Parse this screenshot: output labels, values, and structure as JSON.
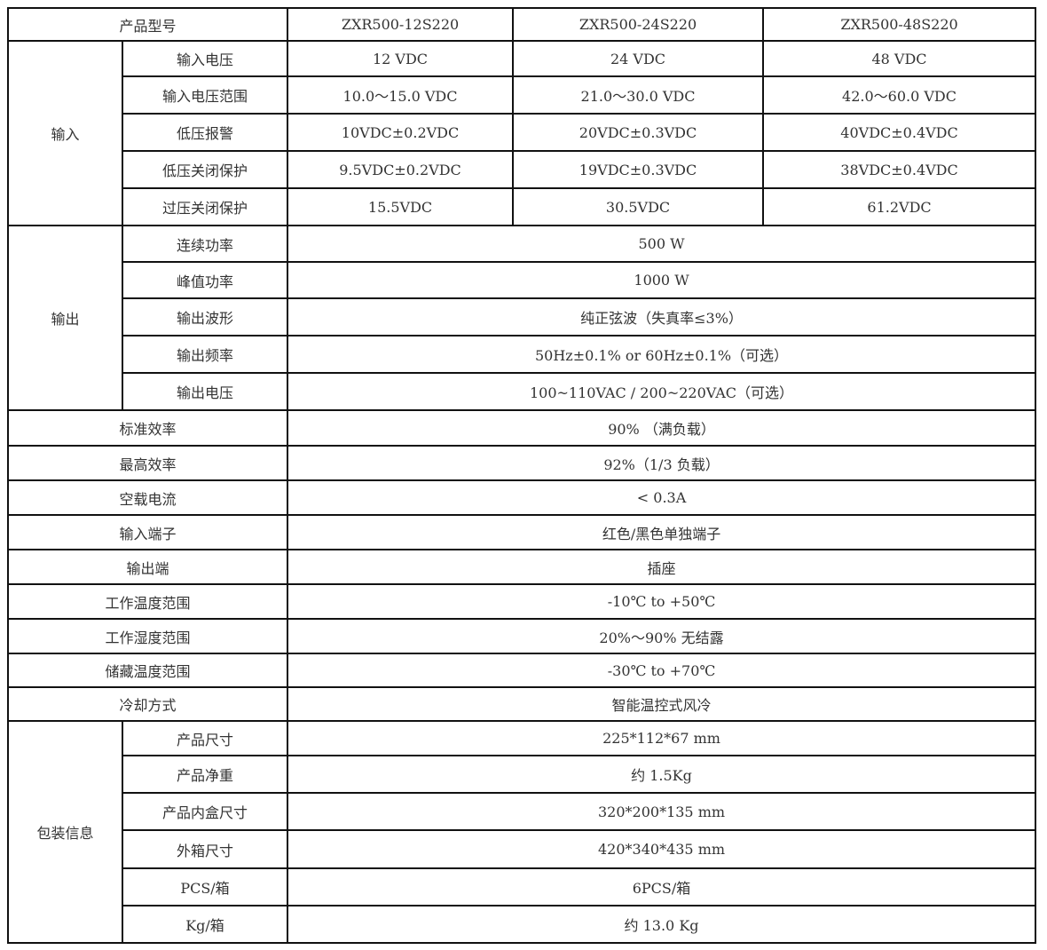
{
  "header": {
    "label": "产品型号",
    "models": [
      "ZXR500-12S220",
      "ZXR500-24S220",
      "ZXR500-48S220"
    ]
  },
  "input": {
    "group": "输入",
    "rows": [
      {
        "label": "输入电压",
        "values": [
          "12 VDC",
          "24 VDC",
          "48 VDC"
        ]
      },
      {
        "label": "输入电压范围",
        "values": [
          "10.0～15.0 VDC",
          "21.0～30.0 VDC",
          "42.0～60.0 VDC"
        ]
      },
      {
        "label": "低压报警",
        "values": [
          "10VDC±0.2VDC",
          "20VDC±0.3VDC",
          "40VDC±0.4VDC"
        ]
      },
      {
        "label": "低压关闭保护",
        "values": [
          "9.5VDC±0.2VDC",
          "19VDC±0.3VDC",
          "38VDC±0.4VDC"
        ]
      },
      {
        "label": "过压关闭保护",
        "values": [
          "15.5VDC",
          "30.5VDC",
          "61.2VDC"
        ]
      }
    ]
  },
  "output": {
    "group": "输出",
    "rows": [
      {
        "label": "连续功率",
        "value": "500 W"
      },
      {
        "label": "峰值功率",
        "value": "1000 W"
      },
      {
        "label": "输出波形",
        "value": "纯正弦波（失真率≤3%）"
      },
      {
        "label": "输出频率",
        "value": "50Hz±0.1% or 60Hz±0.1%（可选）"
      },
      {
        "label": "输出电压",
        "value": "100~110VAC / 200~220VAC（可选）"
      }
    ]
  },
  "general": [
    {
      "label": "标准效率",
      "value": "90% （满负载）"
    },
    {
      "label": "最高效率",
      "value": "92%（1/3 负载）"
    },
    {
      "label": "空载电流",
      "value": "< 0.3A"
    },
    {
      "label": "输入端子",
      "value": "红色/黑色单独端子"
    },
    {
      "label": "输出端",
      "value": "插座"
    },
    {
      "label": "工作温度范围",
      "value": "-10℃ to +50℃"
    },
    {
      "label": "工作湿度范围",
      "value": "20%～90% 无结露"
    },
    {
      "label": "储藏温度范围",
      "value": "-30℃ to +70℃"
    },
    {
      "label": "冷却方式",
      "value": "智能温控式风冷"
    }
  ],
  "packaging": {
    "group": "包装信息",
    "rows": [
      {
        "label": "产品尺寸",
        "value": "225*112*67 mm"
      },
      {
        "label": "产品净重",
        "value": "约 1.5Kg"
      },
      {
        "label": "产品内盒尺寸",
        "value": "320*200*135 mm"
      },
      {
        "label": "外箱尺寸",
        "value": "420*340*435 mm"
      },
      {
        "label": "PCS/箱",
        "value": "6PCS/箱"
      },
      {
        "label": "Kg/箱",
        "value": "约 13.0 Kg"
      }
    ]
  }
}
